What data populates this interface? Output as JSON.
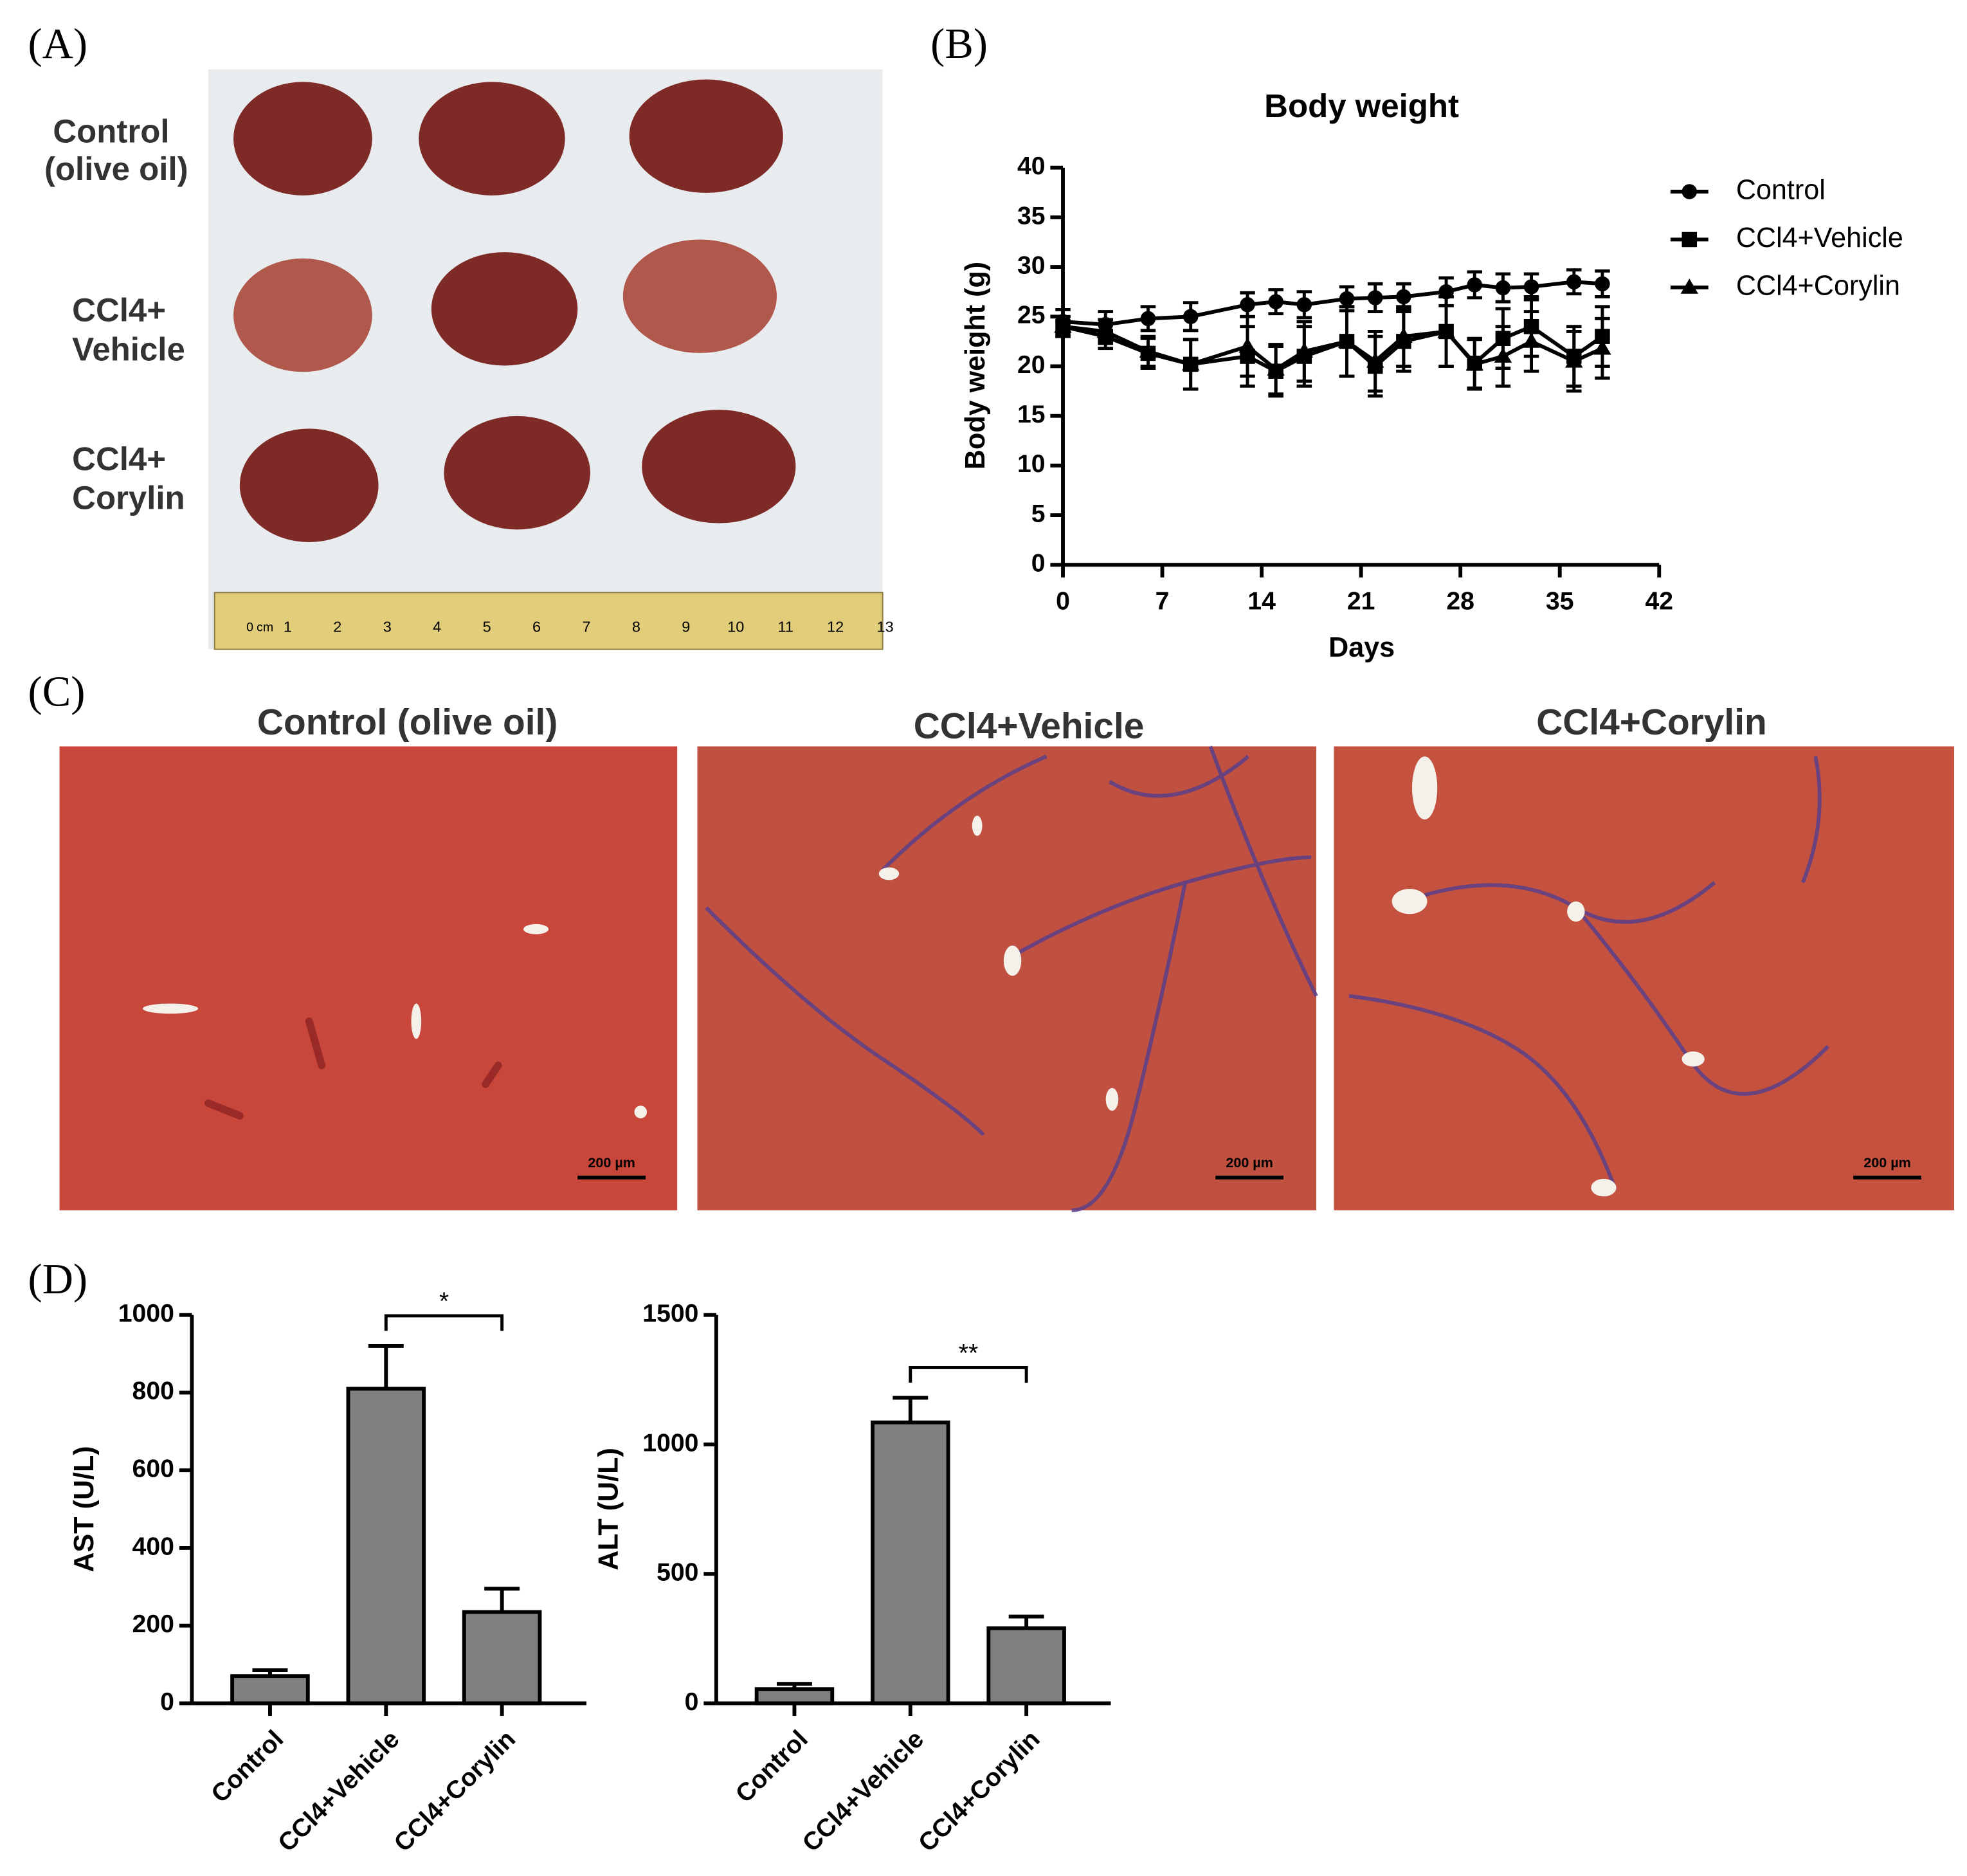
{
  "figure": {
    "panel_labels": [
      "(A)",
      "(B)",
      "(C)",
      "(D)"
    ],
    "photo_rows": [
      [
        "Control",
        "(olive oil)"
      ],
      [
        "CCl4+",
        "Vehicle"
      ],
      [
        "CCl4+",
        "Corylin"
      ]
    ],
    "ruler_labels": [
      "0",
      "cm",
      "1",
      "2",
      "3",
      "4",
      "5",
      "6",
      "7",
      "8",
      "9",
      "10",
      "11",
      "12",
      "13"
    ],
    "histology_titles": [
      "Control (olive oil)",
      "CCl4+Vehicle",
      "CCl4+Corylin"
    ],
    "scale_bar": "200 µm"
  },
  "chart_data": [
    {
      "type": "line",
      "title": "Body weight",
      "x_label": "Days",
      "y_label": "Body weight (g)",
      "x": [
        0,
        3,
        6,
        9,
        13,
        15,
        17,
        20,
        22,
        24,
        27,
        29,
        31,
        33,
        36,
        38
      ],
      "xlim": [
        0,
        42
      ],
      "xticks": [
        0,
        7,
        14,
        21,
        28,
        35,
        42
      ],
      "ylim": [
        0,
        40
      ],
      "yticks": [
        0,
        5,
        10,
        15,
        20,
        25,
        30,
        35,
        40
      ],
      "legend": "right",
      "series": [
        {
          "name": "Control",
          "color": "#000000",
          "marker": "circle",
          "values": [
            24.5,
            24.2,
            24.8,
            25,
            26.2,
            26.5,
            26.2,
            26.8,
            26.9,
            27,
            27.5,
            28.2,
            27.9,
            28,
            28.5,
            28.3
          ],
          "errors": [
            1.2,
            1.3,
            1.2,
            1.4,
            1.2,
            1.2,
            1.3,
            1.2,
            1.4,
            1.3,
            1.4,
            1.3,
            1.4,
            1.3,
            1.2,
            1.3
          ]
        },
        {
          "name": "CCl4+Vehicle",
          "color": "#000000",
          "marker": "square",
          "values": [
            24,
            23,
            21.3,
            20.2,
            21,
            19.5,
            21,
            22.5,
            20,
            22.5,
            23.5,
            20.3,
            22.8,
            24,
            21,
            23
          ],
          "errors": [
            1,
            1.2,
            1.5,
            2.5,
            3,
            2.5,
            3,
            3.5,
            3,
            3,
            3.5,
            2.5,
            3,
            3,
            3,
            3
          ]
        },
        {
          "name": "CCl4+Corylin",
          "color": "#000000",
          "marker": "triangle",
          "values": [
            24,
            23.5,
            21.5,
            20.2,
            22,
            19.7,
            21.5,
            22.5,
            20.5,
            23,
            23.5,
            20.2,
            21,
            22.5,
            20.5,
            21.8
          ],
          "errors": [
            1,
            1.2,
            1.5,
            2.5,
            3,
            2.5,
            3,
            3.5,
            3,
            3,
            3.5,
            2.5,
            3,
            3,
            3,
            3
          ]
        }
      ]
    },
    {
      "type": "bar",
      "y_label": "AST (U/L)",
      "categories": [
        "Control",
        "CCl4+Vehicle",
        "CCl4+Corylin"
      ],
      "values": [
        70,
        810,
        235
      ],
      "errors": [
        15,
        110,
        60
      ],
      "color": "#808080",
      "ylim": [
        0,
        1000
      ],
      "yticks": [
        0,
        200,
        400,
        600,
        800,
        1000
      ],
      "annotations": [
        {
          "text": "*"
        }
      ]
    },
    {
      "type": "bar",
      "y_label": "ALT (U/L)",
      "categories": [
        "Control",
        "CCl4+Vehicle",
        "CCl4+Corylin"
      ],
      "values": [
        55,
        1085,
        290
      ],
      "errors": [
        20,
        95,
        45
      ],
      "color": "#808080",
      "ylim": [
        0,
        1500
      ],
      "yticks": [
        0,
        500,
        1000,
        1500
      ],
      "annotations": [
        {
          "text": "**"
        }
      ]
    }
  ]
}
